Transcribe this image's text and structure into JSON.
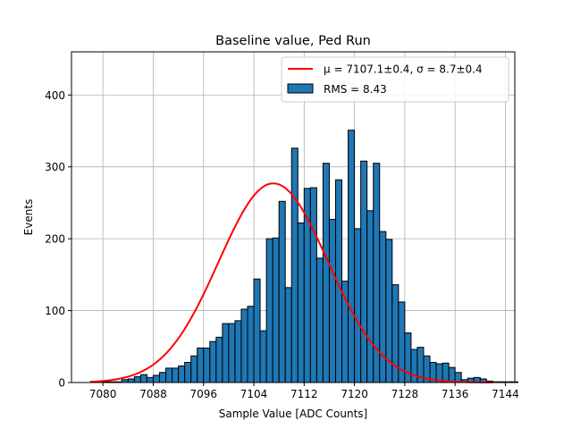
{
  "chart_data": {
    "type": "bar",
    "title": "Baseline value, Ped Run",
    "xlabel": "Sample Value [ADC Counts]",
    "ylabel": "Events",
    "xlim": [
      7075.0,
      7145.5
    ],
    "ylim": [
      0,
      460
    ],
    "xticks": [
      7080,
      7088,
      7096,
      7104,
      7112,
      7120,
      7128,
      7136,
      7144
    ],
    "yticks": [
      0,
      100,
      200,
      300,
      400
    ],
    "grid": true,
    "legend_position": "top-right",
    "bar_color": "#1f77b4",
    "fit_color": "#ff0000",
    "histogram": {
      "name": "RMS = 8.43",
      "bin_start": 7078,
      "bin_width": 1,
      "counts": [
        1,
        1,
        1,
        1,
        1,
        4,
        5,
        8,
        11,
        7,
        10,
        14,
        20,
        20,
        23,
        28,
        37,
        48,
        48,
        57,
        63,
        82,
        82,
        86,
        102,
        106,
        144,
        72,
        200,
        201,
        252,
        132,
        326,
        222,
        270,
        271,
        173,
        305,
        227,
        282,
        141,
        351,
        214,
        308,
        239,
        305,
        210,
        199,
        136,
        112,
        69,
        46,
        49,
        37,
        28,
        26,
        27,
        21,
        14,
        4,
        6,
        7,
        5,
        2,
        1,
        1,
        1,
        1
      ]
    },
    "fit": {
      "name": "μ = 7107.1±0.4, σ = 8.7±0.4",
      "mu": 7107.1,
      "sigma": 8.7,
      "amplitude": 277,
      "x_range": [
        7078,
        7142
      ]
    }
  }
}
